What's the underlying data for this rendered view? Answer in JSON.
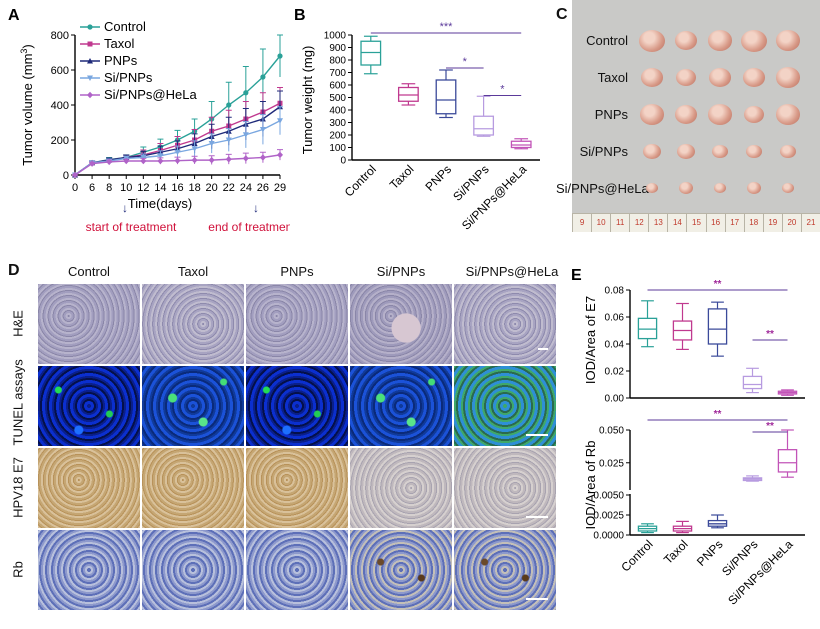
{
  "panels": {
    "A": "A",
    "B": "B",
    "C": "C",
    "D": "D",
    "E": "E"
  },
  "chart_data": [
    {
      "type": "line",
      "panel": "A",
      "xlabel": "Time(days)",
      "ylabel": "Tumor volume (mm³)",
      "ylabel_main": "Tumor volume (mm",
      "ylabel_sup": "3",
      "ylabel_end": ")",
      "ylim": [
        0,
        800
      ],
      "yticks": [
        "0",
        "200",
        "400",
        "600",
        "800"
      ],
      "x": [
        0,
        6,
        8,
        10,
        12,
        14,
        16,
        18,
        20,
        22,
        24,
        26,
        29
      ],
      "xticks": [
        "0",
        "6",
        "8",
        "10",
        "12",
        "14",
        "16",
        "18",
        "20",
        "22",
        "24",
        "26",
        "29"
      ],
      "series": [
        {
          "name": "Control",
          "color": "#2aa198",
          "marker": "circle",
          "values": [
            0,
            70,
            88,
            100,
            130,
            160,
            200,
            250,
            320,
            400,
            470,
            560,
            680
          ],
          "err": [
            0,
            10,
            12,
            15,
            30,
            45,
            55,
            70,
            100,
            130,
            150,
            160,
            120
          ]
        },
        {
          "name": "Taxol",
          "color": "#c0398f",
          "marker": "square",
          "values": [
            0,
            70,
            85,
            100,
            115,
            140,
            170,
            200,
            250,
            280,
            320,
            360,
            410
          ],
          "err": [
            0,
            10,
            12,
            14,
            28,
            40,
            50,
            60,
            80,
            90,
            100,
            110,
            90
          ]
        },
        {
          "name": "PNPs",
          "color": "#1f2a7a",
          "marker": "triangle",
          "values": [
            0,
            70,
            85,
            100,
            110,
            130,
            150,
            180,
            220,
            250,
            290,
            320,
            390
          ],
          "err": [
            0,
            10,
            12,
            14,
            25,
            35,
            45,
            55,
            70,
            80,
            90,
            100,
            90
          ]
        },
        {
          "name": "Si/PNPs",
          "color": "#7aa7e0",
          "marker": "triangle-down",
          "values": [
            0,
            70,
            80,
            95,
            100,
            110,
            130,
            150,
            180,
            200,
            230,
            260,
            310
          ],
          "err": [
            0,
            8,
            10,
            12,
            20,
            28,
            35,
            45,
            55,
            65,
            75,
            85,
            80
          ]
        },
        {
          "name": "Si/PNPs@HeLa",
          "color": "#b063c8",
          "marker": "diamond",
          "values": [
            0,
            65,
            75,
            80,
            80,
            80,
            82,
            85,
            85,
            90,
            95,
            100,
            115
          ],
          "err": [
            0,
            8,
            10,
            10,
            15,
            18,
            20,
            22,
            25,
            28,
            30,
            30,
            30
          ]
        }
      ],
      "annotations": {
        "start": "start of treatment",
        "end": "end of treatment",
        "start_x": 10,
        "end_x": 26
      }
    },
    {
      "type": "box",
      "panel": "B",
      "ylabel": "Tumor weight (mg)",
      "ylim": [
        0,
        1000
      ],
      "yticks": [
        "0",
        "100",
        "200",
        "300",
        "400",
        "500",
        "600",
        "700",
        "800",
        "900",
        "1000"
      ],
      "categories": [
        "Control",
        "Taxol",
        "PNPs",
        "Si/PNPs",
        "Si/PNPs@HeLa"
      ],
      "colors": [
        "#2aa198",
        "#c0398f",
        "#3b4a9a",
        "#b79be0",
        "#c254b8"
      ],
      "boxes": [
        {
          "min": 690,
          "q1": 760,
          "median": 860,
          "q3": 950,
          "max": 990
        },
        {
          "min": 440,
          "q1": 470,
          "median": 520,
          "q3": 580,
          "max": 610
        },
        {
          "min": 340,
          "q1": 370,
          "median": 480,
          "q3": 640,
          "max": 720
        },
        {
          "min": 190,
          "q1": 200,
          "median": 250,
          "q3": 350,
          "max": 510
        },
        {
          "min": 90,
          "q1": 100,
          "median": 120,
          "q3": 150,
          "max": 170
        }
      ],
      "significance": [
        {
          "from": 0,
          "to": 4,
          "label": "***",
          "y": 1000
        },
        {
          "from": 2,
          "to": 3,
          "label": "*",
          "y": 720
        },
        {
          "from": 3,
          "to": 4,
          "label": "*",
          "y": 500
        }
      ]
    },
    {
      "type": "box",
      "panel": "E-top",
      "ylabel": "IOD/Area of E7",
      "ylim": [
        0,
        0.08
      ],
      "yticks": [
        "0.00",
        "0.02",
        "0.04",
        "0.06",
        "0.08"
      ],
      "categories": [
        "Control",
        "Taxol",
        "PNPs",
        "Si/PNPs",
        "Si/PNPs@HeLa"
      ],
      "colors": [
        "#2aa198",
        "#c0398f",
        "#3b4a9a",
        "#b79be0",
        "#c254b8"
      ],
      "boxes": [
        {
          "min": 0.038,
          "q1": 0.044,
          "median": 0.051,
          "q3": 0.059,
          "max": 0.072
        },
        {
          "min": 0.036,
          "q1": 0.043,
          "median": 0.05,
          "q3": 0.057,
          "max": 0.07
        },
        {
          "min": 0.031,
          "q1": 0.04,
          "median": 0.051,
          "q3": 0.066,
          "max": 0.071
        },
        {
          "min": 0.004,
          "q1": 0.007,
          "median": 0.01,
          "q3": 0.016,
          "max": 0.022
        },
        {
          "min": 0.002,
          "q1": 0.003,
          "median": 0.004,
          "q3": 0.005,
          "max": 0.006
        }
      ],
      "significance": [
        {
          "from": 0,
          "to": 4,
          "label": "**",
          "y": 0.08
        },
        {
          "from": 3,
          "to": 4,
          "label": "**",
          "y": 0.043
        }
      ]
    },
    {
      "type": "box",
      "panel": "E-bottom",
      "ylabel": "IOD/Area of  Rb",
      "yticks_upper": [
        "0.025",
        "0.050"
      ],
      "yticks_lower": [
        "0.0000",
        "0.0025",
        "0.0050"
      ],
      "categories": [
        "Control",
        "Taxol",
        "PNPs",
        "Si/PNPs",
        "Si/PNPs@HeLa"
      ],
      "colors": [
        "#2aa198",
        "#c0398f",
        "#3b4a9a",
        "#b79be0",
        "#c254b8"
      ],
      "boxes": [
        {
          "min": 0.0003,
          "q1": 0.0005,
          "median": 0.0008,
          "q3": 0.0011,
          "max": 0.0014
        },
        {
          "min": 0.0003,
          "q1": 0.0005,
          "median": 0.0008,
          "q3": 0.0011,
          "max": 0.0017
        },
        {
          "min": 0.0009,
          "q1": 0.0011,
          "median": 0.0014,
          "q3": 0.0018,
          "max": 0.0025
        },
        {
          "min": 0.011,
          "q1": 0.0115,
          "median": 0.0125,
          "q3": 0.0135,
          "max": 0.015
        },
        {
          "min": 0.014,
          "q1": 0.018,
          "median": 0.025,
          "q3": 0.035,
          "max": 0.05
        }
      ],
      "significance": [
        {
          "from": 0,
          "to": 4,
          "label": "**"
        },
        {
          "from": 3,
          "to": 4,
          "label": "**"
        }
      ]
    }
  ],
  "photo": {
    "rows": [
      "Control",
      "Taxol",
      "PNPs",
      "Si/PNPs",
      "Si/PNPs@HeLa"
    ],
    "ruler": [
      "9",
      "10",
      "11",
      "12",
      "13",
      "14",
      "15",
      "16",
      "17",
      "18",
      "19",
      "20",
      "21"
    ]
  },
  "micro": {
    "columns": [
      "Control",
      "Taxol",
      "PNPs",
      "Si/PNPs",
      "Si/PNPs@HeLa"
    ],
    "rows": [
      "H&E",
      "TUNEL assays",
      "HPV18 E7",
      "Rb"
    ]
  }
}
